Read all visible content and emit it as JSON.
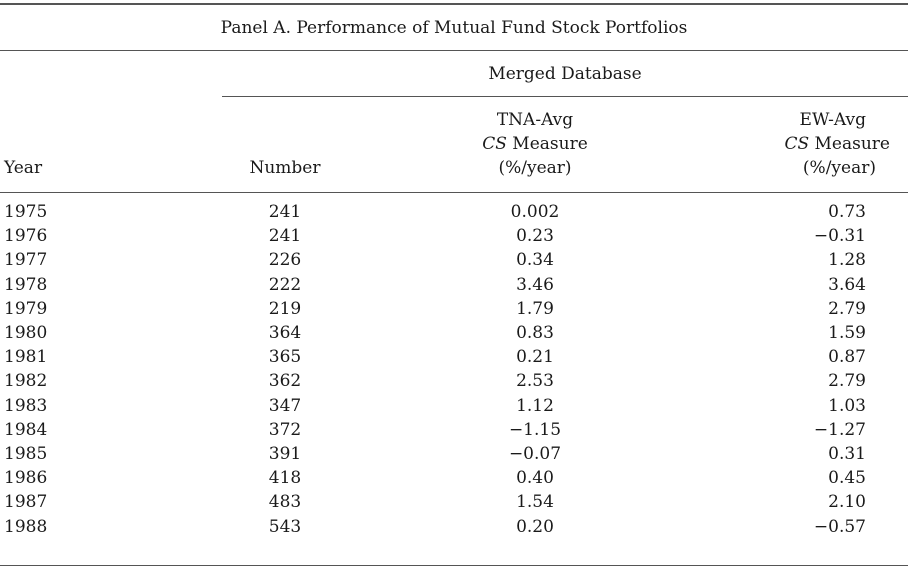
{
  "title": "Panel A. Performance of Mutual Fund Stock Portfolios",
  "group_header": "Merged Database",
  "columns": {
    "year": "Year",
    "number": "Number",
    "tna": {
      "line1": "TNA-Avg",
      "cs": "CS",
      "measure": " Measure",
      "unit": "(%/year)"
    },
    "ew": {
      "line1": "EW-Avg",
      "cs": "CS",
      "measure": " Measure",
      "unit": "(%/year)"
    }
  },
  "rows": [
    {
      "year": "1975",
      "number": "241",
      "tna": "0.002",
      "ew": "0.73"
    },
    {
      "year": "1976",
      "number": "241",
      "tna": "0.23",
      "ew": "−0.31"
    },
    {
      "year": "1977",
      "number": "226",
      "tna": "0.34",
      "ew": "1.28"
    },
    {
      "year": "1978",
      "number": "222",
      "tna": "3.46",
      "ew": "3.64"
    },
    {
      "year": "1979",
      "number": "219",
      "tna": "1.79",
      "ew": "2.79"
    },
    {
      "year": "1980",
      "number": "364",
      "tna": "0.83",
      "ew": "1.59"
    },
    {
      "year": "1981",
      "number": "365",
      "tna": "0.21",
      "ew": "0.87"
    },
    {
      "year": "1982",
      "number": "362",
      "tna": "2.53",
      "ew": "2.79"
    },
    {
      "year": "1983",
      "number": "347",
      "tna": "1.12",
      "ew": "1.03"
    },
    {
      "year": "1984",
      "number": "372",
      "tna": "−1.15",
      "ew": "−1.27"
    },
    {
      "year": "1985",
      "number": "391",
      "tna": "−0.07",
      "ew": "0.31"
    },
    {
      "year": "1986",
      "number": "418",
      "tna": "0.40",
      "ew": "0.45"
    },
    {
      "year": "1987",
      "number": "483",
      "tna": "1.54",
      "ew": "2.10"
    },
    {
      "year": "1988",
      "number": "543",
      "tna": "0.20",
      "ew": "−0.57"
    }
  ]
}
